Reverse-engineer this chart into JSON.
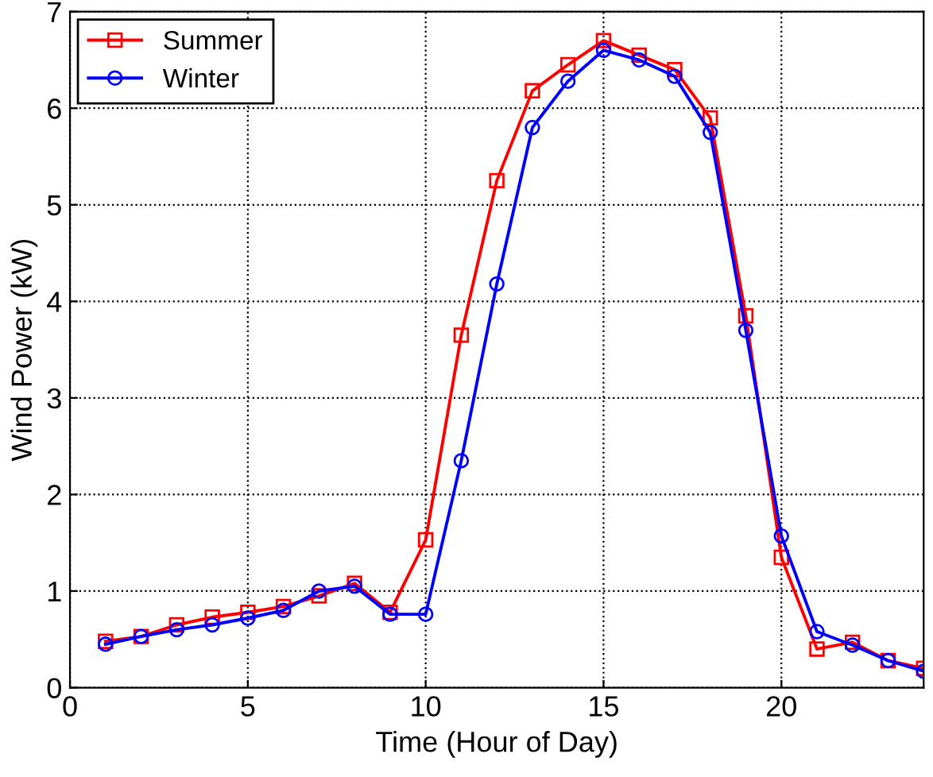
{
  "chart_data": {
    "type": "line",
    "xlabel": "Time (Hour of Day)",
    "ylabel": "Wind Power (kW)",
    "x": [
      1,
      2,
      3,
      4,
      5,
      6,
      7,
      8,
      9,
      10,
      11,
      12,
      13,
      14,
      15,
      16,
      17,
      18,
      19,
      20,
      21,
      22,
      23,
      24
    ],
    "series": [
      {
        "name": "Summer",
        "color": "#ff0000",
        "marker": "square",
        "values": [
          0.48,
          0.53,
          0.65,
          0.73,
          0.78,
          0.84,
          0.95,
          1.08,
          0.78,
          1.53,
          3.65,
          5.25,
          6.18,
          6.45,
          6.7,
          6.55,
          6.4,
          5.9,
          3.85,
          1.35,
          0.4,
          0.47,
          0.28,
          0.2
        ]
      },
      {
        "name": "Winter",
        "color": "#0000ff",
        "marker": "circle",
        "values": [
          0.45,
          0.53,
          0.6,
          0.65,
          0.72,
          0.8,
          1.0,
          1.05,
          0.76,
          0.76,
          2.35,
          4.18,
          5.8,
          6.28,
          6.6,
          6.5,
          6.33,
          5.75,
          3.7,
          1.57,
          0.58,
          0.44,
          0.28,
          0.17
        ]
      }
    ],
    "xlim": [
      0,
      24
    ],
    "ylim": [
      0,
      7
    ],
    "xticks": [
      0,
      5,
      10,
      15,
      20
    ],
    "yticks": [
      0,
      1,
      2,
      3,
      4,
      5,
      6,
      7
    ],
    "grid": true,
    "legend": "top left",
    "line_style": "solid"
  }
}
